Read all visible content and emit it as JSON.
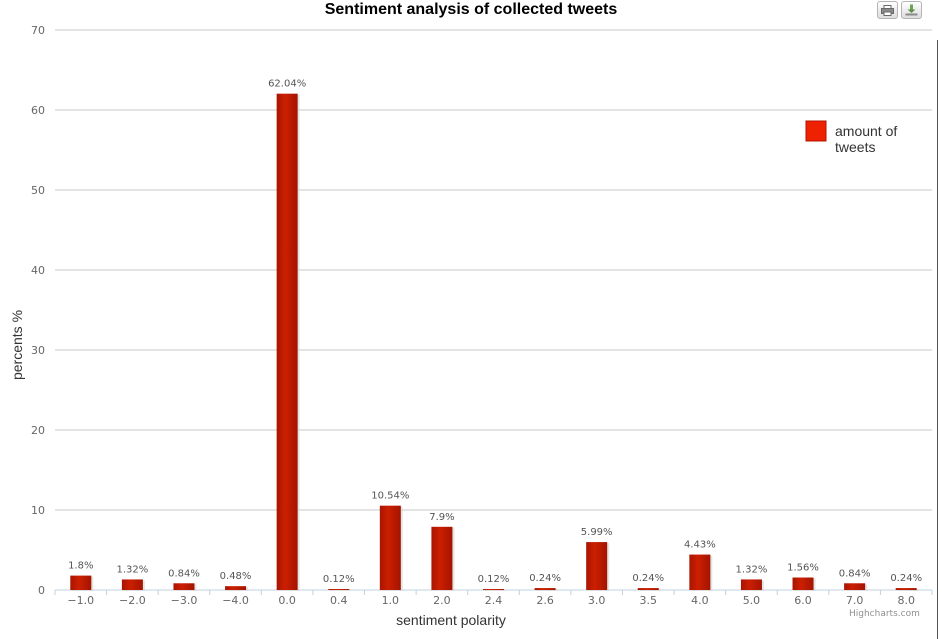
{
  "toolbar": {
    "print_icon": "print-icon",
    "download_icon": "download-icon"
  },
  "credit": "Highcharts.com",
  "chart_data": {
    "type": "bar",
    "title": "Sentiment analysis of collected tweets",
    "xlabel": "sentiment polarity",
    "ylabel": "percents %",
    "ylim": [
      0,
      70
    ],
    "yticks": [
      0,
      10,
      20,
      30,
      40,
      50,
      60,
      70
    ],
    "grid": true,
    "legend_position": "top-right",
    "categories": [
      "-1.0",
      "-2.0",
      "-3.0",
      "-4.0",
      "0.0",
      "0.4",
      "1.0",
      "2.0",
      "2.4",
      "2.6",
      "3.0",
      "3.5",
      "4.0",
      "5.0",
      "6.0",
      "7.0",
      "8.0"
    ],
    "series": [
      {
        "name": "amount of tweets",
        "color": "#bb1a00",
        "values": [
          1.8,
          1.32,
          0.84,
          0.48,
          62.04,
          0.12,
          10.54,
          7.9,
          0.12,
          0.24,
          5.99,
          0.24,
          4.43,
          1.32,
          1.56,
          0.84,
          0.24
        ],
        "labels": [
          "1.8%",
          "1.32%",
          "0.84%",
          "0.48%",
          "62.04%",
          "0.12%",
          "10.54%",
          "7.9%",
          "0.12%",
          "0.24%",
          "5.99%",
          "0.24%",
          "4.43%",
          "1.32%",
          "1.56%",
          "0.84%",
          "0.24%"
        ]
      }
    ]
  }
}
